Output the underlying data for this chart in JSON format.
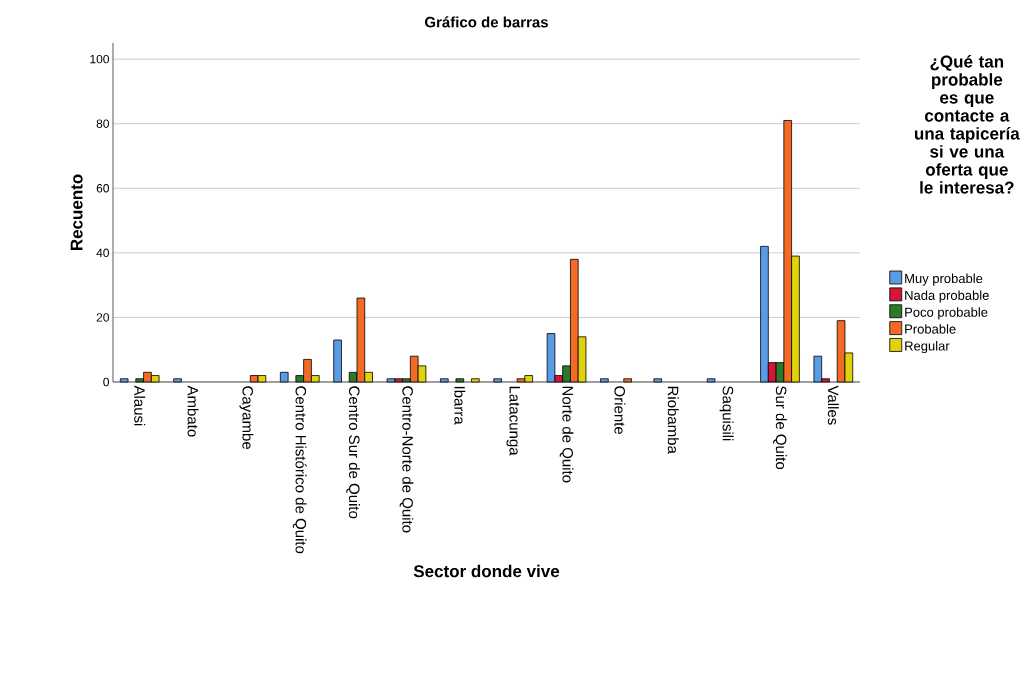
{
  "chart_data": {
    "type": "bar",
    "title": "Gráfico de barras",
    "xlabel": "Sector donde vive",
    "ylabel": "Recuento",
    "legend_title": "¿Qué tan probable es que contacte a una tapicería si ve una oferta que le interesa?",
    "categories": [
      "Alausi",
      "Ambato",
      "Cayambe",
      "Centro Histórico de Quito",
      "Centro Sur de Quito",
      "Centro-Norte de Quito",
      "Ibarra",
      "Latacunga",
      "Norte de Quito",
      "Oriente",
      "Riobamba",
      "Saquisili",
      "Sur de Quito",
      "Valles"
    ],
    "series": [
      {
        "name": "Muy probable",
        "color": "#5a9be6",
        "values": [
          1,
          1,
          null,
          3,
          13,
          1,
          1,
          1,
          15,
          1,
          1,
          1,
          42,
          8
        ]
      },
      {
        "name": "Nada probable",
        "color": "#d6143a",
        "values": [
          null,
          null,
          null,
          null,
          null,
          1,
          null,
          null,
          2,
          null,
          null,
          null,
          6,
          1
        ]
      },
      {
        "name": "Poco probable",
        "color": "#2a7a2a",
        "values": [
          1,
          null,
          null,
          2,
          3,
          1,
          1,
          null,
          5,
          null,
          null,
          null,
          6,
          null
        ]
      },
      {
        "name": "Probable",
        "color": "#f26a25",
        "values": [
          3,
          null,
          2,
          7,
          26,
          8,
          null,
          1,
          38,
          1,
          null,
          null,
          81,
          19
        ]
      },
      {
        "name": "Regular",
        "color": "#e0d30c",
        "values": [
          2,
          null,
          2,
          2,
          3,
          5,
          1,
          2,
          14,
          null,
          null,
          null,
          39,
          9
        ]
      }
    ],
    "ylim": [
      0,
      105
    ],
    "yticks": [
      0,
      20,
      40,
      60,
      80,
      100
    ],
    "grid": "y",
    "legend": "right"
  }
}
